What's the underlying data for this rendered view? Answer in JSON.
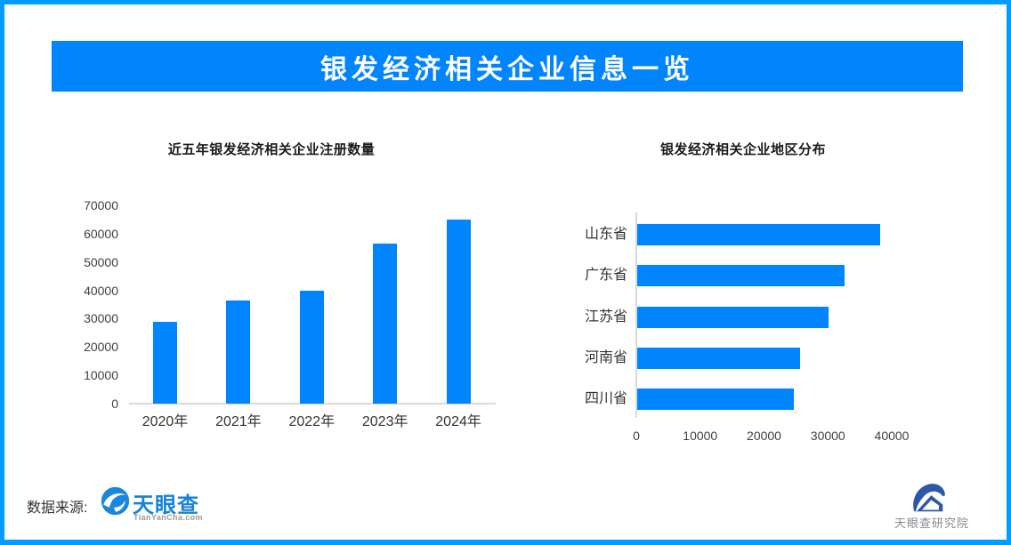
{
  "banner": {
    "title": "银发经济相关企业信息一览"
  },
  "colors": {
    "accent": "#0085FF",
    "bar": "#0085FF",
    "frame": "#009CFF",
    "axis_line": "#D9D9D9",
    "tick_text": "#404040",
    "label_text": "#333333",
    "tianyancha_blue": "#1583D6",
    "research_logo_blue": "#2D57A8"
  },
  "chart_data": [
    {
      "type": "bar",
      "orientation": "vertical",
      "title": "近五年银发经济相关企业注册数量",
      "categories": [
        "2020年",
        "2021年",
        "2022年",
        "2023年",
        "2024年"
      ],
      "values": [
        29000,
        36500,
        40000,
        56500,
        65000
      ],
      "xlabel": "",
      "ylabel": "",
      "ylim": [
        0,
        70000
      ],
      "yticks": [
        0,
        10000,
        20000,
        30000,
        40000,
        50000,
        60000,
        70000
      ],
      "grid": false,
      "legend": false
    },
    {
      "type": "bar",
      "orientation": "horizontal",
      "title": "银发经济相关企业地区分布",
      "categories": [
        "山东省",
        "广东省",
        "江苏省",
        "河南省",
        "四川省"
      ],
      "values": [
        38000,
        32500,
        30000,
        25500,
        24500
      ],
      "xlabel": "",
      "ylabel": "",
      "xlim": [
        0,
        47000
      ],
      "xticks": [
        0,
        10000,
        20000,
        30000,
        40000
      ],
      "grid": false,
      "legend": false
    }
  ],
  "footer": {
    "source_label": "数据来源:",
    "tianyancha": {
      "name": "天眼查",
      "url_text": "TianYanCha.com"
    },
    "research": {
      "name": "天眼查研究院"
    }
  }
}
